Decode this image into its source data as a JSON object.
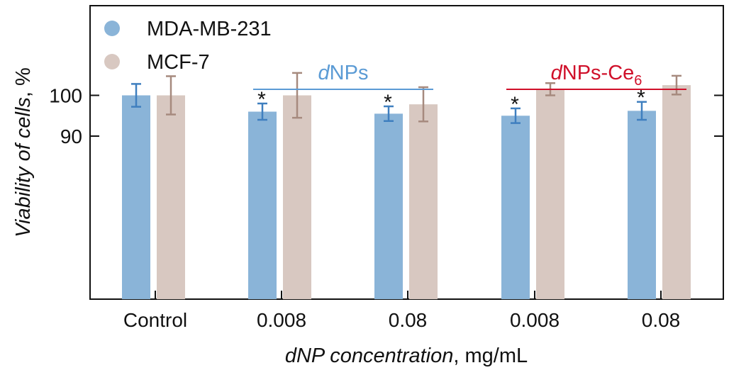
{
  "chart_data": {
    "type": "bar",
    "xlabel": {
      "italic": "dNP concentration",
      "rest": ", mg/mL"
    },
    "ylabel": {
      "italic": "Viability of cells",
      "rest": ", %"
    },
    "ylim": [
      50,
      122
    ],
    "yticks": [
      {
        "value": 90,
        "label": "90"
      },
      {
        "value": 100,
        "label": "100"
      }
    ],
    "categories": [
      "Control",
      "0.008",
      "0.08",
      "0.008",
      "0.08"
    ],
    "series": [
      {
        "name": "MDA-MB-231",
        "color": "#8ab4d8",
        "error_color": "#3f7fbf",
        "values": [
          100,
          96,
          95.5,
          95,
          96.2
        ],
        "errors": [
          2.8,
          2,
          1.8,
          1.8,
          2.2
        ]
      },
      {
        "name": "MCF-7",
        "color": "#d8c8c1",
        "error_color": "#a68a7e",
        "values": [
          100,
          100,
          97.8,
          101.5,
          102.5
        ],
        "errors": [
          4.7,
          5.5,
          4.2,
          1.5,
          2.3
        ]
      }
    ],
    "significance": [
      {
        "category_index": 1,
        "series_index": 0,
        "label": "*"
      },
      {
        "category_index": 2,
        "series_index": 0,
        "label": "*"
      },
      {
        "category_index": 3,
        "series_index": 0,
        "label": "*"
      },
      {
        "category_index": 4,
        "series_index": 0,
        "label": "*"
      }
    ],
    "groups": [
      {
        "prefix": "d",
        "main": "NPs",
        "subscript": "",
        "color": "#5b9bd5",
        "from_category": 1,
        "to_category": 2
      },
      {
        "prefix": "d",
        "main": "NPs-Ce",
        "subscript": "6",
        "color": "#d0102a",
        "from_category": 3,
        "to_category": 4
      }
    ],
    "legend_position": "top-left",
    "grid": false
  }
}
